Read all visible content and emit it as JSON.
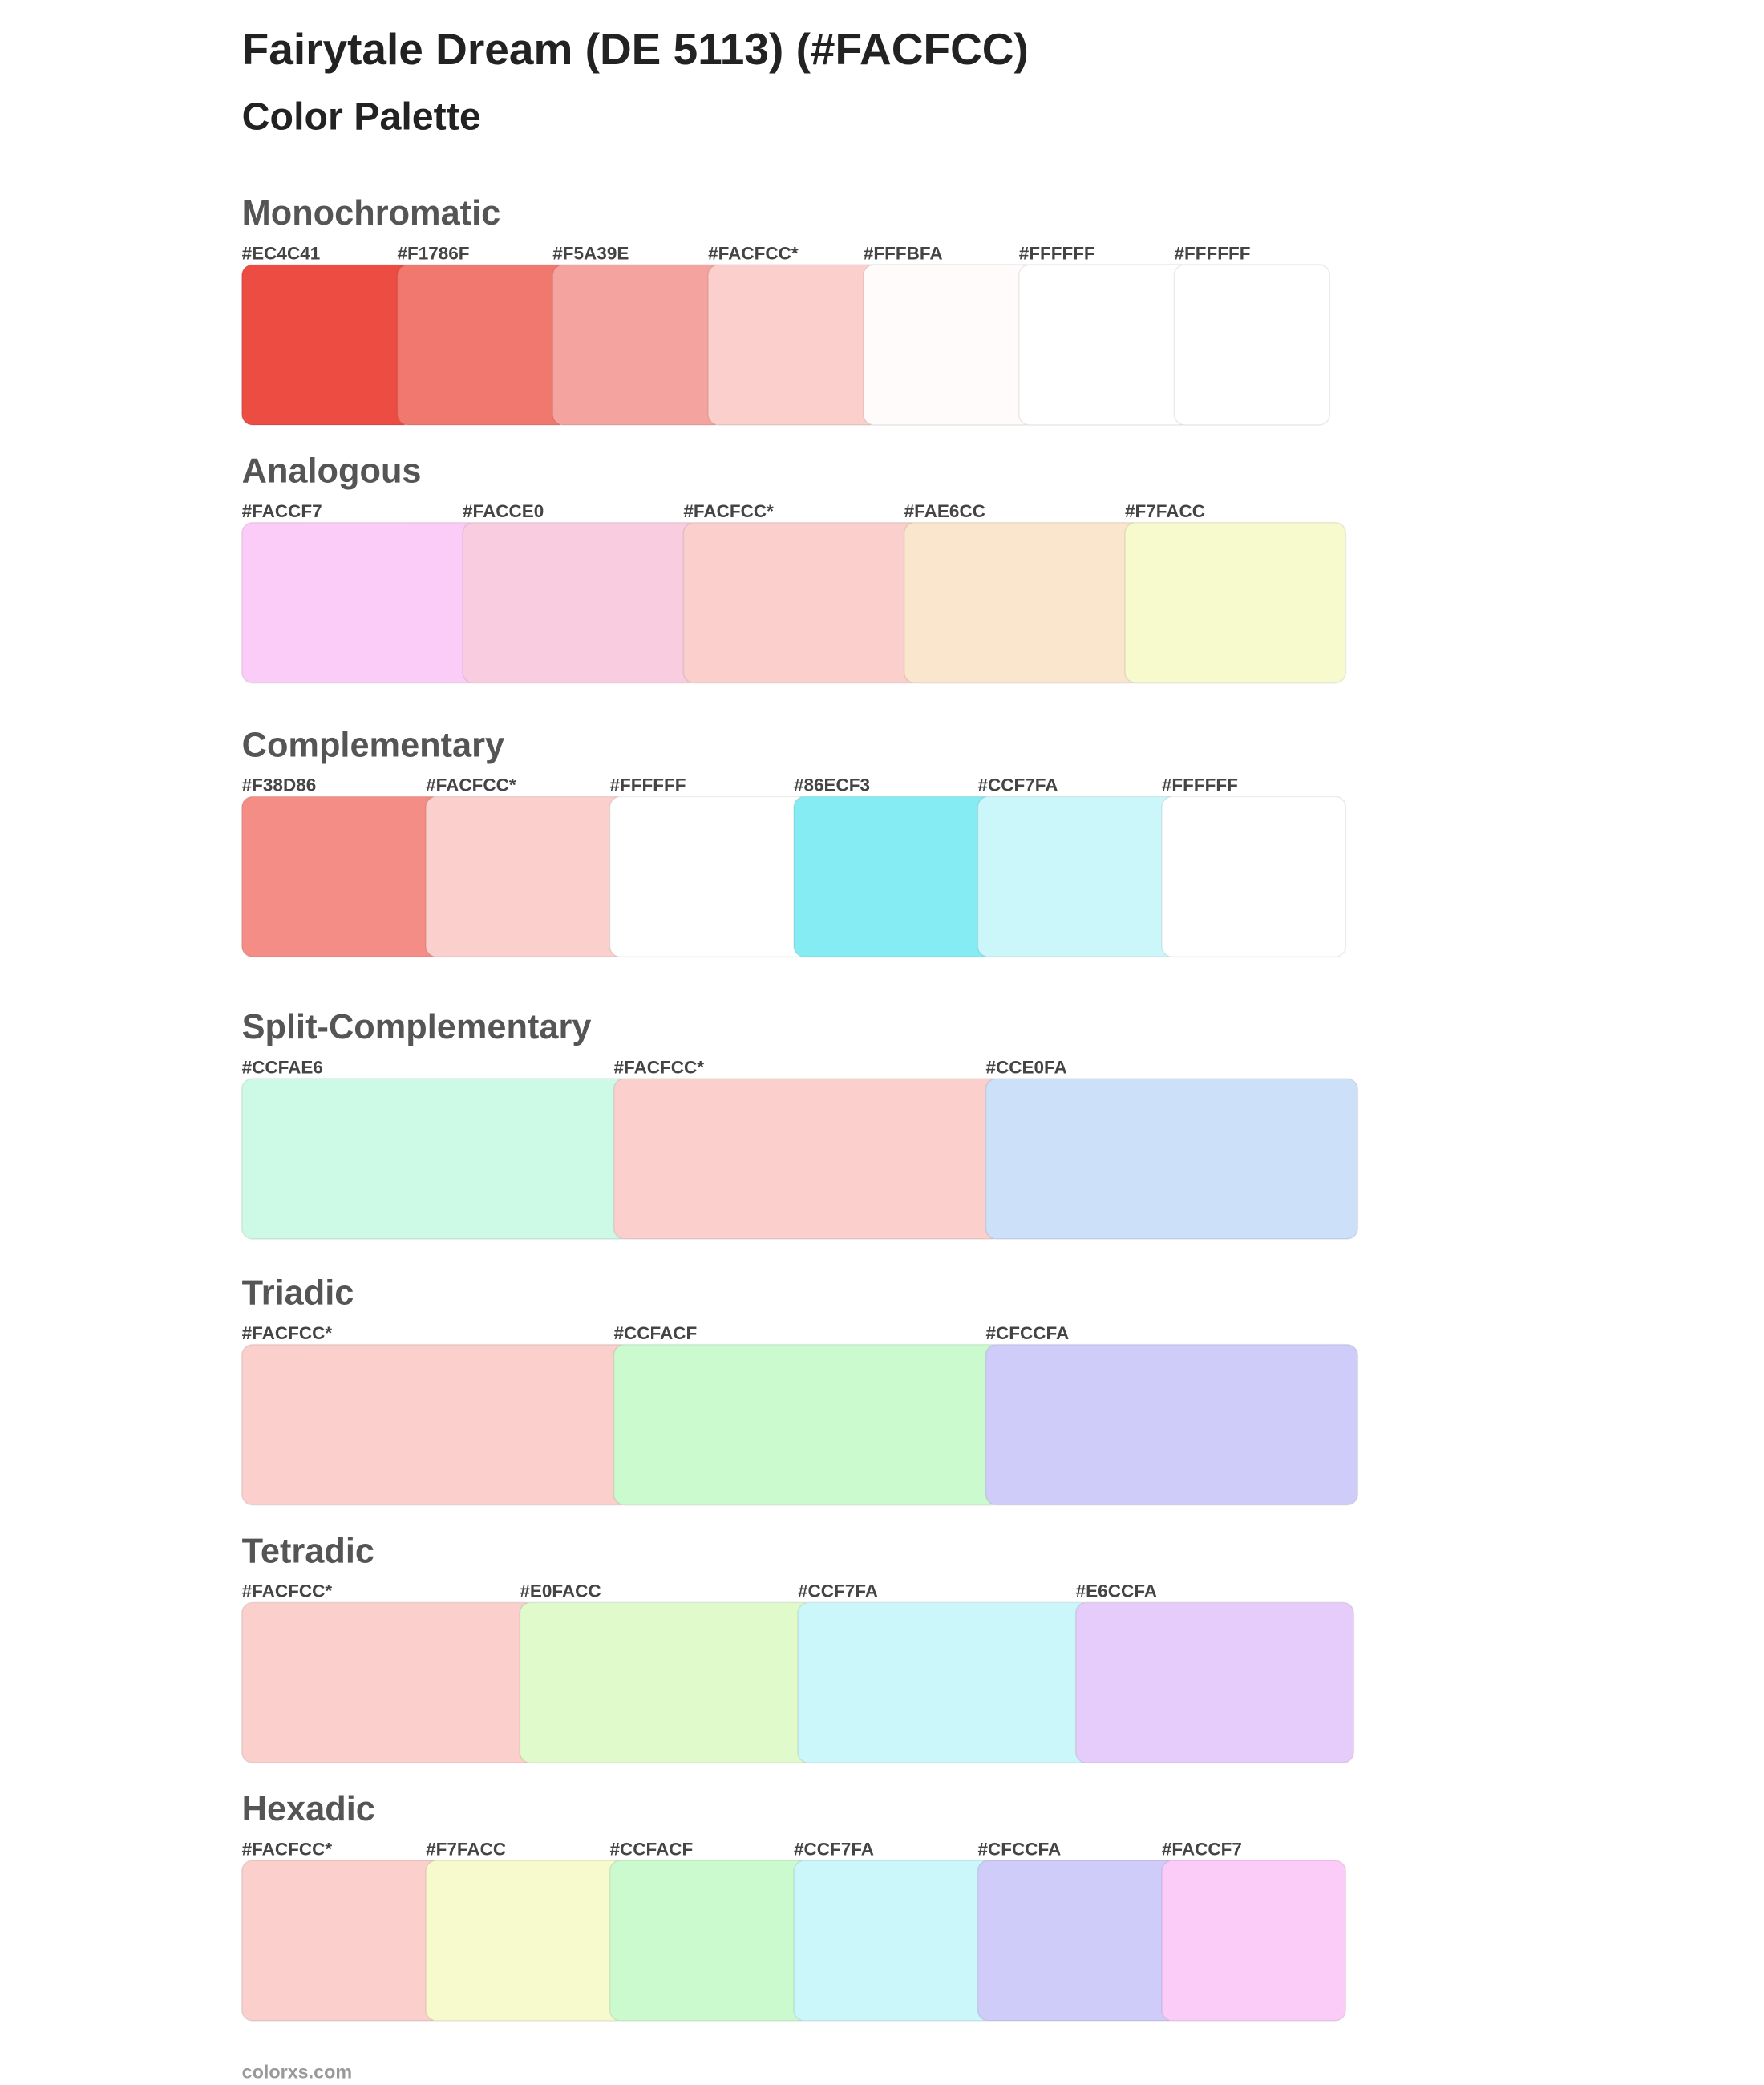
{
  "header": {
    "title": "Fairytale Dream (DE 5113) (#FACFCC)",
    "subtitle": "Color Palette"
  },
  "sections": [
    {
      "name": "Monochromatic",
      "swatches": [
        {
          "label": "#EC4C41",
          "color": "#EC4C41"
        },
        {
          "label": "#F1786F",
          "color": "#F1786F"
        },
        {
          "label": "#F5A39E",
          "color": "#F5A39E"
        },
        {
          "label": "#FACFCC*",
          "color": "#FACFCC"
        },
        {
          "label": "#FFFBFA",
          "color": "#FFFBFA"
        },
        {
          "label": "#FFFFFF",
          "color": "#FFFFFF"
        },
        {
          "label": "#FFFFFF",
          "color": "#FFFFFF"
        }
      ]
    },
    {
      "name": "Analogous",
      "swatches": [
        {
          "label": "#FACCF7",
          "color": "#FACCF7"
        },
        {
          "label": "#FACCE0",
          "color": "#FACCE0"
        },
        {
          "label": "#FACFCC*",
          "color": "#FACFCC"
        },
        {
          "label": "#FAE6CC",
          "color": "#FAE6CC"
        },
        {
          "label": "#F7FACC",
          "color": "#F7FACC"
        }
      ]
    },
    {
      "name": "Complementary",
      "swatches": [
        {
          "label": "#F38D86",
          "color": "#F38D86"
        },
        {
          "label": "#FACFCC*",
          "color": "#FACFCC"
        },
        {
          "label": "#FFFFFF",
          "color": "#FFFFFF"
        },
        {
          "label": "#86ECF3",
          "color": "#86ECF3"
        },
        {
          "label": "#CCF7FA",
          "color": "#CCF7FA"
        },
        {
          "label": "#FFFFFF",
          "color": "#FFFFFF"
        }
      ]
    },
    {
      "name": "Split-Complementary",
      "swatches": [
        {
          "label": "#CCFAE6",
          "color": "#CCFAE6"
        },
        {
          "label": "#FACFCC*",
          "color": "#FACFCC"
        },
        {
          "label": "#CCE0FA",
          "color": "#CCE0FA"
        }
      ]
    },
    {
      "name": "Triadic",
      "swatches": [
        {
          "label": "#FACFCC*",
          "color": "#FACFCC"
        },
        {
          "label": "#CCFACF",
          "color": "#CCFACF"
        },
        {
          "label": "#CFCCFA",
          "color": "#CFCCFA"
        }
      ]
    },
    {
      "name": "Tetradic",
      "swatches": [
        {
          "label": "#FACFCC*",
          "color": "#FACFCC"
        },
        {
          "label": "#E0FACC",
          "color": "#E0FACC"
        },
        {
          "label": "#CCF7FA",
          "color": "#CCF7FA"
        },
        {
          "label": "#E6CCFA",
          "color": "#E6CCFA"
        }
      ]
    },
    {
      "name": "Hexadic",
      "swatches": [
        {
          "label": "#FACFCC*",
          "color": "#FACFCC"
        },
        {
          "label": "#F7FACC",
          "color": "#F7FACC"
        },
        {
          "label": "#CCFACF",
          "color": "#CCFACF"
        },
        {
          "label": "#CCF7FA",
          "color": "#CCF7FA"
        },
        {
          "label": "#CFCCFA",
          "color": "#CFCCFA"
        },
        {
          "label": "#FACCF7",
          "color": "#FACCF7"
        }
      ]
    }
  ],
  "footer": "colorxs.com"
}
